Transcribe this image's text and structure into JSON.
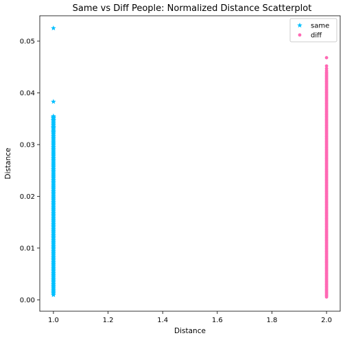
{
  "chart_data": {
    "type": "scatter",
    "title": "Same vs Diff People: Normalized Distance Scatterplot",
    "xlabel": "Distance",
    "ylabel": "Distance",
    "xlim": [
      0.95,
      2.05
    ],
    "ylim": [
      -0.0022,
      0.0549
    ],
    "xticks": [
      1.0,
      1.2,
      1.4,
      1.6,
      1.8,
      2.0
    ],
    "xtick_labels": [
      "1.0",
      "1.2",
      "1.4",
      "1.6",
      "1.8",
      "2.0"
    ],
    "yticks": [
      0.0,
      0.01,
      0.02,
      0.03,
      0.04,
      0.05
    ],
    "ytick_labels": [
      "0.00",
      "0.01",
      "0.02",
      "0.03",
      "0.04",
      "0.05"
    ],
    "grid": false,
    "legend_position": "top-right",
    "series": [
      {
        "name": "same",
        "marker": "star",
        "color": "#00bfff",
        "x_value": 1.0,
        "y_min": 0.0009,
        "y_dense_max": 0.0355,
        "outliers": [
          0.0525,
          0.0383,
          0.0352,
          0.0347,
          0.034,
          0.0333,
          0.0325
        ]
      },
      {
        "name": "diff",
        "marker": "circle",
        "color": "#ff69b4",
        "x_value": 2.0,
        "y_min": 0.0004,
        "y_dense_max": 0.044,
        "outliers": [
          0.0468,
          0.0452,
          0.0447,
          0.0443
        ]
      }
    ]
  }
}
